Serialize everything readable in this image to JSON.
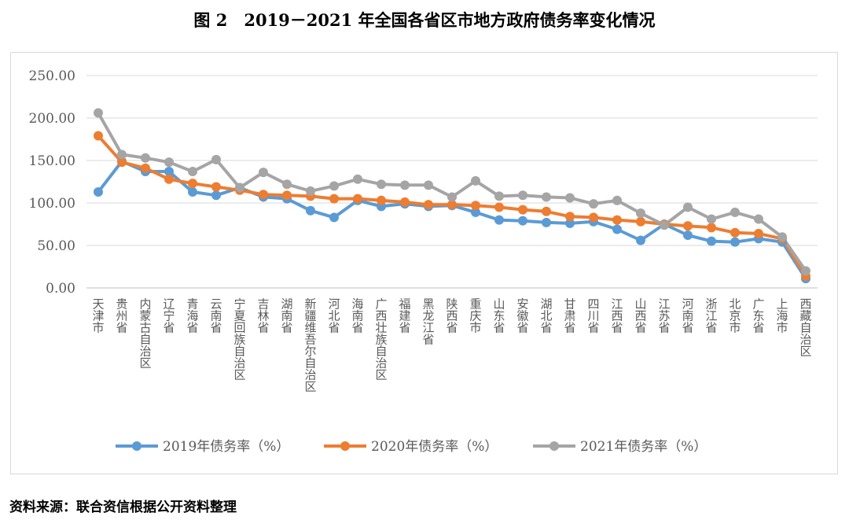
{
  "page_title": "图 2　2019－2021 年全国各省区市地方政府债务率变化情况",
  "source_note": "资料来源：联合资信根据公开资料整理",
  "chart_data": {
    "type": "line",
    "title": "",
    "xlabel": "",
    "ylabel": "",
    "ylim": [
      0,
      250
    ],
    "yticks": [
      "0.00",
      "50.00",
      "100.00",
      "150.00",
      "200.00",
      "250.00"
    ],
    "grid": true,
    "legend_position": "bottom",
    "categories": [
      "天津市",
      "贵州省",
      "内蒙古自治区",
      "辽宁省",
      "青海省",
      "云南省",
      "宁夏回族自治区",
      "吉林省",
      "湖南省",
      "新疆维吾尔自治区",
      "河北省",
      "海南省",
      "广西壮族自治区",
      "福建省",
      "黑龙江省",
      "陕西省",
      "重庆市",
      "山东省",
      "安徽省",
      "湖北省",
      "甘肃省",
      "四川省",
      "江西省",
      "山西省",
      "江苏省",
      "河南省",
      "浙江省",
      "北京市",
      "广东省",
      "上海市",
      "西藏自治区"
    ],
    "series": [
      {
        "name": "2019年债务率（%）",
        "color": "#5b9bd5",
        "values": [
          113,
          149,
          137,
          137,
          113,
          109,
          118,
          107,
          105,
          91,
          83,
          103,
          96,
          99,
          96,
          97,
          89,
          80,
          79,
          77,
          76,
          78,
          69,
          56,
          75,
          62,
          55,
          54,
          58,
          54,
          11
        ]
      },
      {
        "name": "2020年债务率（%）",
        "color": "#ed7d31",
        "values": [
          179,
          148,
          141,
          128,
          123,
          119,
          115,
          110,
          109,
          108,
          105,
          105,
          103,
          101,
          98,
          98,
          97,
          95,
          92,
          90,
          84,
          83,
          80,
          78,
          75,
          73,
          71,
          65,
          64,
          58,
          14
        ]
      },
      {
        "name": "2021年债务率（%）",
        "color": "#a5a5a5",
        "values": [
          206,
          157,
          153,
          148,
          137,
          151,
          118,
          136,
          122,
          114,
          120,
          128,
          122,
          121,
          121,
          107,
          126,
          108,
          109,
          107,
          106,
          99,
          103,
          88,
          74,
          95,
          81,
          89,
          81,
          60,
          20
        ]
      }
    ]
  }
}
